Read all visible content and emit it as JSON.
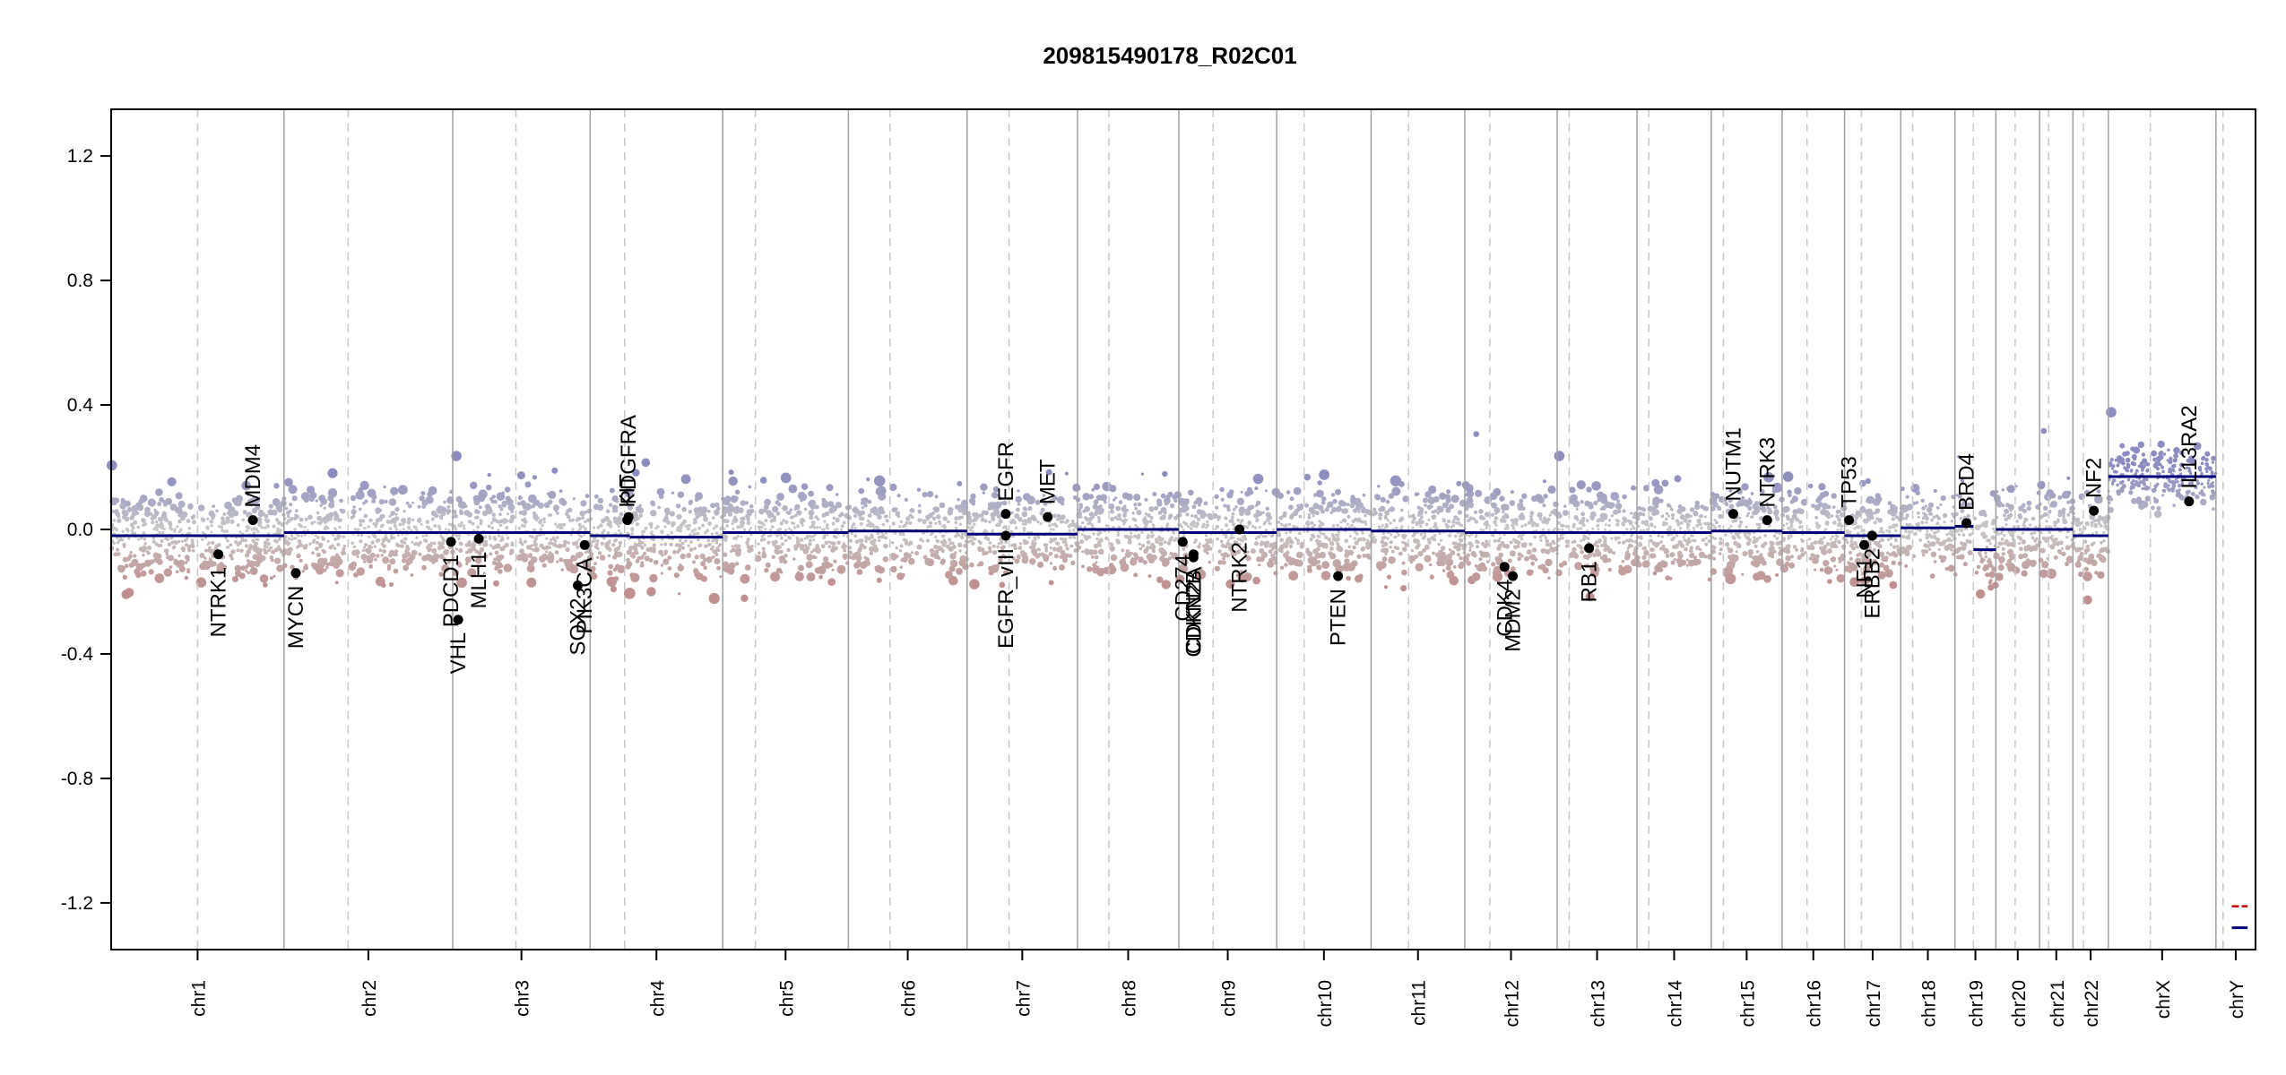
{
  "chart_data": {
    "type": "scatter",
    "title": "209815490178_R02C01",
    "xlabel": "",
    "ylabel": "",
    "ylim": [
      -1.35,
      1.35
    ],
    "y_ticks": [
      1.2,
      0.8,
      0.4,
      0.0,
      -0.4,
      -0.8,
      -1.2
    ],
    "y_tick_labels": [
      "1.2",
      "0.8",
      "0.4",
      "0.0",
      "-0.4",
      "-0.8",
      "-1.2"
    ],
    "grid": false,
    "colors": {
      "gain": "#8c8cc0",
      "neutral": "#c8c8c8",
      "loss": "#c09090",
      "segment": "#00007a",
      "chr_boundary": "#a0a0a0",
      "centromere": "#c8c8c8",
      "gene_point": "#000000",
      "chrY_extra_segment": "#c00000"
    },
    "chromosomes": [
      {
        "name": "chr1",
        "length": 249,
        "centromere": 0.5,
        "segments": [
          {
            "start": 0,
            "end": 1,
            "value": -0.02
          }
        ]
      },
      {
        "name": "chr2",
        "length": 243,
        "centromere": 0.38,
        "segments": [
          {
            "start": 0,
            "end": 1,
            "value": -0.01
          }
        ]
      },
      {
        "name": "chr3",
        "length": 198,
        "centromere": 0.46,
        "segments": [
          {
            "start": 0,
            "end": 1,
            "value": -0.01
          }
        ]
      },
      {
        "name": "chr4",
        "length": 191,
        "centromere": 0.26,
        "segments": [
          {
            "start": 0,
            "end": 0.3,
            "value": -0.02
          },
          {
            "start": 0.3,
            "end": 1,
            "value": -0.025
          }
        ]
      },
      {
        "name": "chr5",
        "length": 181,
        "centromere": 0.26,
        "segments": [
          {
            "start": 0,
            "end": 1,
            "value": -0.01
          }
        ]
      },
      {
        "name": "chr6",
        "length": 171,
        "centromere": 0.35,
        "segments": [
          {
            "start": 0,
            "end": 1,
            "value": -0.005
          }
        ]
      },
      {
        "name": "chr7",
        "length": 159,
        "centromere": 0.38,
        "segments": [
          {
            "start": 0,
            "end": 1,
            "value": -0.015
          }
        ]
      },
      {
        "name": "chr8",
        "length": 146,
        "centromere": 0.31,
        "segments": [
          {
            "start": 0,
            "end": 1,
            "value": 0.0
          }
        ]
      },
      {
        "name": "chr9",
        "length": 141,
        "centromere": 0.35,
        "segments": [
          {
            "start": 0,
            "end": 1,
            "value": -0.01
          }
        ]
      },
      {
        "name": "chr10",
        "length": 136,
        "centromere": 0.29,
        "segments": [
          {
            "start": 0,
            "end": 1,
            "value": 0.0
          }
        ]
      },
      {
        "name": "chr11",
        "length": 135,
        "centromere": 0.4,
        "segments": [
          {
            "start": 0,
            "end": 1,
            "value": -0.005
          }
        ]
      },
      {
        "name": "chr12",
        "length": 133,
        "centromere": 0.27,
        "segments": [
          {
            "start": 0,
            "end": 1,
            "value": -0.01
          }
        ]
      },
      {
        "name": "chr13",
        "length": 115,
        "centromere": 0.15,
        "segments": [
          {
            "start": 0,
            "end": 1,
            "value": -0.01
          }
        ]
      },
      {
        "name": "chr14",
        "length": 107,
        "centromere": 0.16,
        "segments": [
          {
            "start": 0,
            "end": 1,
            "value": -0.01
          }
        ]
      },
      {
        "name": "chr15",
        "length": 102,
        "centromere": 0.17,
        "segments": [
          {
            "start": 0,
            "end": 1,
            "value": -0.005
          }
        ]
      },
      {
        "name": "chr16",
        "length": 90,
        "centromere": 0.4,
        "segments": [
          {
            "start": 0,
            "end": 1,
            "value": -0.01
          }
        ]
      },
      {
        "name": "chr17",
        "length": 81,
        "centromere": 0.3,
        "segments": [
          {
            "start": 0,
            "end": 1,
            "value": -0.02
          }
        ]
      },
      {
        "name": "chr18",
        "length": 78,
        "centromere": 0.22,
        "segments": [
          {
            "start": 0,
            "end": 1,
            "value": 0.005
          }
        ]
      },
      {
        "name": "chr19",
        "length": 59,
        "centromere": 0.45,
        "segments": [
          {
            "start": 0,
            "end": 0.45,
            "value": 0.01
          },
          {
            "start": 0.45,
            "end": 1,
            "value": -0.065
          }
        ]
      },
      {
        "name": "chr20",
        "length": 63,
        "centromere": 0.44,
        "segments": [
          {
            "start": 0,
            "end": 1,
            "value": 0.0
          }
        ]
      },
      {
        "name": "chr21",
        "length": 48,
        "centromere": 0.27,
        "segments": [
          {
            "start": 0,
            "end": 1,
            "value": 0.0
          }
        ]
      },
      {
        "name": "chr22",
        "length": 51,
        "centromere": 0.29,
        "segments": [
          {
            "start": 0,
            "end": 1,
            "value": -0.02
          }
        ]
      },
      {
        "name": "chrX",
        "length": 155,
        "centromere": 0.39,
        "segments": [
          {
            "start": 0,
            "end": 1,
            "value": 0.17
          }
        ]
      },
      {
        "name": "chrY",
        "length": 57,
        "centromere": 0.18,
        "segments": [
          {
            "start": 0.4,
            "end": 0.8,
            "value": -1.28
          }
        ]
      }
    ],
    "genes": [
      {
        "name": "NTRK1",
        "chr": "chr1",
        "pos": 0.62,
        "value": -0.08,
        "label_side": "below"
      },
      {
        "name": "MDM4",
        "chr": "chr1",
        "pos": 0.82,
        "value": 0.03,
        "label_side": "above"
      },
      {
        "name": "MYCN",
        "chr": "chr2",
        "pos": 0.07,
        "value": -0.14,
        "label_side": "below"
      },
      {
        "name": "PDCD1",
        "chr": "chr2",
        "pos": 0.99,
        "value": -0.04,
        "label_side": "below"
      },
      {
        "name": "VHL",
        "chr": "chr3",
        "pos": 0.04,
        "value": -0.29,
        "label_side": "below"
      },
      {
        "name": "MLH1",
        "chr": "chr3",
        "pos": 0.19,
        "value": -0.03,
        "label_side": "below"
      },
      {
        "name": "SOX2",
        "chr": "chr3",
        "pos": 0.91,
        "value": -0.18,
        "label_side": "below"
      },
      {
        "name": "PIK3CA",
        "chr": "chr3",
        "pos": 0.96,
        "value": -0.05,
        "label_side": "below"
      },
      {
        "name": "KIT",
        "chr": "chr4",
        "pos": 0.28,
        "value": 0.03,
        "label_side": "above"
      },
      {
        "name": "PDGFRA",
        "chr": "chr4",
        "pos": 0.29,
        "value": 0.04,
        "label_side": "above"
      },
      {
        "name": "EGFR",
        "chr": "chr7",
        "pos": 0.35,
        "value": 0.05,
        "label_side": "above"
      },
      {
        "name": "EGFR_vIII",
        "chr": "chr7",
        "pos": 0.35,
        "value": -0.02,
        "label_side": "below"
      },
      {
        "name": "MET",
        "chr": "chr7",
        "pos": 0.73,
        "value": 0.04,
        "label_side": "above"
      },
      {
        "name": "CD274",
        "chr": "chr9",
        "pos": 0.04,
        "value": -0.04,
        "label_side": "below"
      },
      {
        "name": "CDKN2A",
        "chr": "chr9",
        "pos": 0.15,
        "value": -0.08,
        "label_side": "below"
      },
      {
        "name": "CDKN2B",
        "chr": "chr9",
        "pos": 0.15,
        "value": -0.09,
        "label_side": "below"
      },
      {
        "name": "NTRK2",
        "chr": "chr9",
        "pos": 0.62,
        "value": 0.0,
        "label_side": "below"
      },
      {
        "name": "PTEN",
        "chr": "chr10",
        "pos": 0.65,
        "value": -0.15,
        "label_side": "below"
      },
      {
        "name": "CDK4",
        "chr": "chr12",
        "pos": 0.43,
        "value": -0.12,
        "label_side": "below"
      },
      {
        "name": "MDM2",
        "chr": "chr12",
        "pos": 0.52,
        "value": -0.15,
        "label_side": "below"
      },
      {
        "name": "RB1",
        "chr": "chr13",
        "pos": 0.4,
        "value": -0.06,
        "label_side": "below"
      },
      {
        "name": "NUTM1",
        "chr": "chr15",
        "pos": 0.31,
        "value": 0.05,
        "label_side": "above"
      },
      {
        "name": "NTRK3",
        "chr": "chr15",
        "pos": 0.79,
        "value": 0.03,
        "label_side": "above"
      },
      {
        "name": "TP53",
        "chr": "chr17",
        "pos": 0.08,
        "value": 0.03,
        "label_side": "above"
      },
      {
        "name": "NF1",
        "chr": "chr17",
        "pos": 0.35,
        "value": -0.05,
        "label_side": "below"
      },
      {
        "name": "ERBB2",
        "chr": "chr17",
        "pos": 0.49,
        "value": -0.02,
        "label_side": "below"
      },
      {
        "name": "BRD4",
        "chr": "chr19",
        "pos": 0.28,
        "value": 0.02,
        "label_side": "above"
      },
      {
        "name": "NF2",
        "chr": "chr22",
        "pos": 0.59,
        "value": 0.06,
        "label_side": "above"
      },
      {
        "name": "IL13RA2",
        "chr": "chrX",
        "pos": 0.75,
        "value": 0.09,
        "label_side": "above"
      }
    ]
  }
}
